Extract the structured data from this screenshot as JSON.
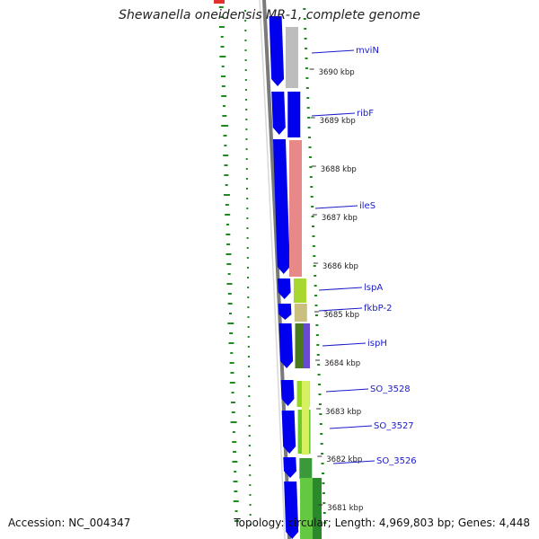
{
  "title": "Shewanella oneidensis MR-1, complete genome",
  "footer": {
    "accession": "Accession: NC_004347",
    "summary": "Topology: circular; Length: 4,969,803 bp; Genes: 4,448"
  },
  "colors": {
    "backbone": "#808080",
    "cds_forward": "#0000ee",
    "gc_skew": "#1f8a1f",
    "gene_label": "#1a1ac8"
  },
  "ruler_labels": [
    "3690 kbp",
    "3689 kbp",
    "3688 kbp",
    "3687 kbp",
    "3686 kbp",
    "3685 kbp",
    "3684 kbp",
    "3683 kbp",
    "3682 kbp",
    "3681 kbp"
  ],
  "gene_labels": [
    "mviN",
    "ribF",
    "ileS",
    "lspA",
    "fkbP-2",
    "ispH",
    "SO_3528",
    "SO_3527",
    "SO_3526"
  ]
}
